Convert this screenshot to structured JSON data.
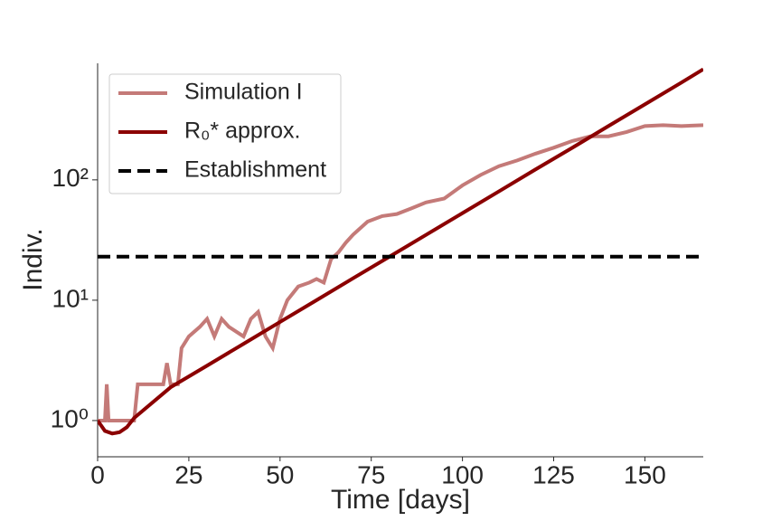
{
  "chart_data": {
    "type": "line",
    "log_y": true,
    "grid": false,
    "legend": "upper left",
    "xlabel": "Time [days]",
    "ylabel": "Indiv.",
    "xlim": [
      0,
      166
    ],
    "ylim": [
      0.5,
      930
    ],
    "xticks": [
      0,
      25,
      50,
      75,
      100,
      125,
      150
    ],
    "yticks": [
      {
        "value": 1,
        "label": "10⁰"
      },
      {
        "value": 10,
        "label": "10¹"
      },
      {
        "value": 100,
        "label": "10²"
      }
    ],
    "series": [
      {
        "name": "Simulation I",
        "color": "#c47a78",
        "x": [
          0,
          2,
          2.5,
          3,
          9,
          10,
          11,
          18,
          19,
          20,
          22,
          23,
          25,
          28,
          30,
          32,
          34,
          36,
          40,
          42,
          44,
          46,
          48,
          50,
          52,
          55,
          58,
          60,
          62,
          64,
          66,
          68,
          70,
          74,
          78,
          82,
          86,
          90,
          95,
          100,
          105,
          110,
          115,
          120,
          125,
          130,
          135,
          140,
          145,
          150,
          155,
          160,
          166
        ],
        "values": [
          1,
          1,
          2,
          1,
          1,
          1,
          2,
          2,
          3,
          2,
          2,
          4,
          5,
          6,
          7,
          5,
          7,
          6,
          5,
          7,
          8,
          5,
          4,
          7,
          10,
          13,
          14,
          15,
          14,
          22,
          25,
          30,
          35,
          45,
          50,
          52,
          58,
          65,
          70,
          90,
          110,
          130,
          145,
          165,
          185,
          210,
          230,
          230,
          250,
          280,
          285,
          280,
          285
        ]
      },
      {
        "name": "R₀* approx.",
        "color": "#8b0000",
        "x": [
          0,
          2,
          4,
          6,
          8,
          10,
          20,
          30,
          40,
          50,
          60,
          70,
          80,
          90,
          100,
          110,
          120,
          130,
          140,
          150,
          160,
          166
        ],
        "values": [
          1,
          0.82,
          0.78,
          0.8,
          0.88,
          1.05,
          1.89,
          2.86,
          4.34,
          6.6,
          10,
          15.2,
          23,
          34.9,
          52.9,
          80.3,
          122,
          184,
          280,
          424,
          643,
          830
        ]
      },
      {
        "name": "Establishment",
        "color": "#000000",
        "dashed": true,
        "y": 23
      }
    ]
  }
}
